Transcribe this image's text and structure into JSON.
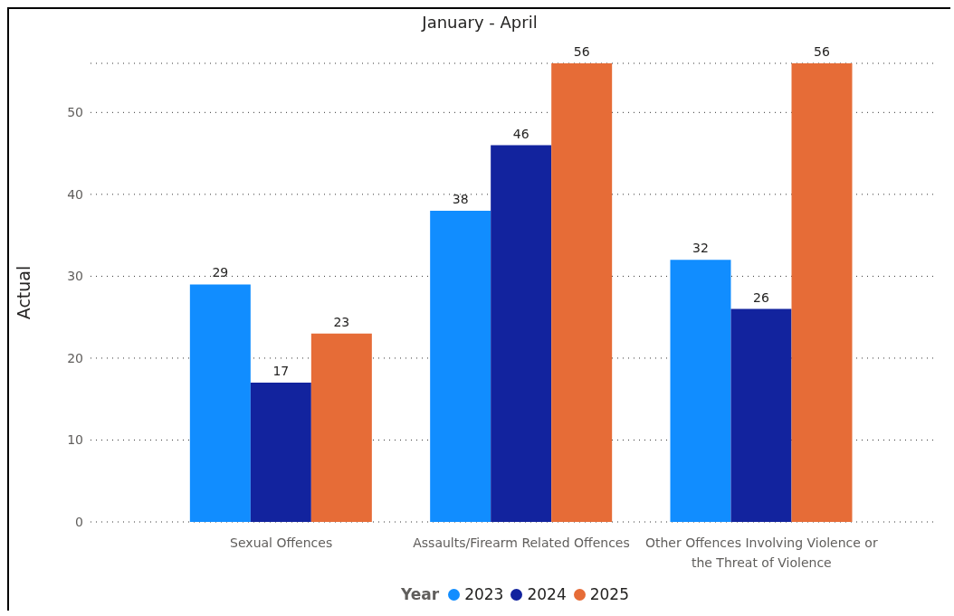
{
  "chart_data": {
    "type": "bar",
    "title": "January - April",
    "ylabel": "Actual",
    "legend_title": "Year",
    "categories": [
      "Sexual Offences",
      "Assaults/Firearm Related Offences",
      "Other Offences Involving Violence or the Threat of Violence"
    ],
    "series": [
      {
        "name": "2023",
        "color": "#118dff",
        "values": [
          29,
          38,
          32
        ]
      },
      {
        "name": "2024",
        "color": "#12239e",
        "values": [
          17,
          46,
          26
        ]
      },
      {
        "name": "2025",
        "color": "#e66c37",
        "values": [
          23,
          56,
          56
        ]
      }
    ],
    "ylim": [
      0,
      56
    ],
    "yticks": [
      0,
      10,
      20,
      30,
      40,
      50
    ],
    "grid": "y",
    "legend": "bottom",
    "data_labels": true
  }
}
